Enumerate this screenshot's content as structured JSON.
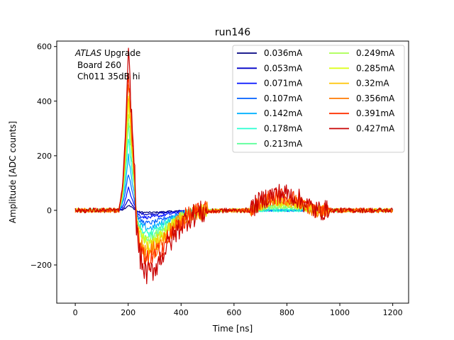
{
  "chart_data": {
    "type": "line",
    "title": "run146",
    "xlabel": "Time [ns]",
    "ylabel": "Amplitude [ADC counts]",
    "xlim": [
      -70,
      1260
    ],
    "ylim": [
      -340,
      620
    ],
    "xticks": [
      0,
      200,
      400,
      600,
      800,
      1000,
      1200
    ],
    "yticks": [
      -200,
      0,
      200,
      400,
      600
    ],
    "xtick_labels": [
      "0",
      "200",
      "400",
      "600",
      "800",
      "1000",
      "1200"
    ],
    "ytick_labels": [
      "−200",
      "0",
      "200",
      "400",
      "600"
    ],
    "grid": false,
    "legend_position": "top-right",
    "annotation": {
      "italic_part": "ATLAS",
      "rest_part": " Upgrade",
      "line2": "Board 260",
      "line3": "Ch011 35dB hi"
    },
    "series": [
      {
        "name": "0.036mA",
        "color": "#00007f",
        "peak": 18,
        "undershoot": -8
      },
      {
        "name": "0.053mA",
        "color": "#0000c8",
        "peak": 38,
        "undershoot": -14
      },
      {
        "name": "0.071mA",
        "color": "#0010ff",
        "peak": 80,
        "undershoot": -26
      },
      {
        "name": "0.107mA",
        "color": "#0060ff",
        "peak": 135,
        "undershoot": -46
      },
      {
        "name": "0.142mA",
        "color": "#00b0ff",
        "peak": 195,
        "undershoot": -65
      },
      {
        "name": "0.178mA",
        "color": "#26ffd0",
        "peak": 260,
        "undershoot": -85
      },
      {
        "name": "0.213mA",
        "color": "#5cff9a",
        "peak": 310,
        "undershoot": -100
      },
      {
        "name": "0.249mA",
        "color": "#a8ff4f",
        "peak": 350,
        "undershoot": -115
      },
      {
        "name": "0.285mA",
        "color": "#dcff1a",
        "peak": 390,
        "undershoot": -125
      },
      {
        "name": "0.32mA",
        "color": "#ffc400",
        "peak": 430,
        "undershoot": -140
      },
      {
        "name": "0.356mA",
        "color": "#ff7a00",
        "peak": 470,
        "undershoot": -160
      },
      {
        "name": "0.391mA",
        "color": "#ff3000",
        "peak": 510,
        "undershoot": -185
      },
      {
        "name": "0.427mA",
        "color": "#c80000",
        "peak": 560,
        "undershoot": -230
      }
    ]
  }
}
